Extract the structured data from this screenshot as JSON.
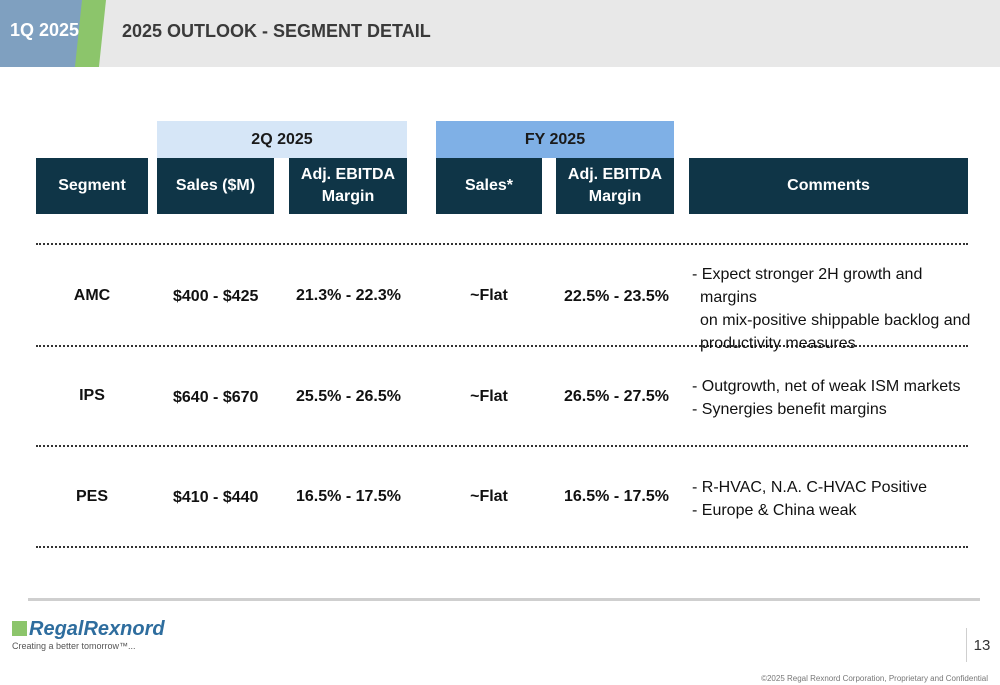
{
  "header": {
    "period": "1Q 2025",
    "title": "2025 OUTLOOK - SEGMENT DETAIL"
  },
  "table": {
    "group_headers": {
      "quarter": "2Q 2025",
      "full_year": "FY 2025"
    },
    "columns": {
      "segment": "Segment",
      "sales": "Sales ($M)",
      "adj_ebitda_1": [
        "Adj. EBITDA",
        "Margin"
      ],
      "sales_fy": "Sales*",
      "adj_ebitda_2": [
        "Adj. EBITDA",
        "Margin"
      ],
      "comments": "Comments"
    },
    "rows": [
      {
        "segment": "AMC",
        "sales": "$400  -  $425",
        "adj_margin_q": "21.3%  -  22.3%",
        "sales_fy": "~Flat",
        "adj_margin_fy": "22.5%  -  23.5%",
        "comments": [
          "- Expect stronger 2H growth and margins",
          "on mix-positive shippable backlog and",
          "productivity measures"
        ]
      },
      {
        "segment": "IPS",
        "sales": "$640  -  $670",
        "adj_margin_q": "25.5%  -  26.5%",
        "sales_fy": "~Flat",
        "adj_margin_fy": "26.5%  -  27.5%",
        "comments": [
          "- Outgrowth, net of weak ISM markets",
          "- Synergies benefit margins"
        ]
      },
      {
        "segment": "PES",
        "sales": "$410  -  $440",
        "adj_margin_q": "16.5%  -  17.5%",
        "sales_fy": "~Flat",
        "adj_margin_fy": "16.5%  -  17.5%",
        "comments": [
          "- R-HVAC, N.A. C-HVAC Positive",
          "- Europe & China weak"
        ]
      }
    ]
  },
  "footer": {
    "logo_text": "RegalRexnord",
    "tagline": "Creating a better tomorrow™...",
    "page_number": "13",
    "copyright": "©2025 Regal Rexnord Corporation, Proprietary and Confidential"
  }
}
